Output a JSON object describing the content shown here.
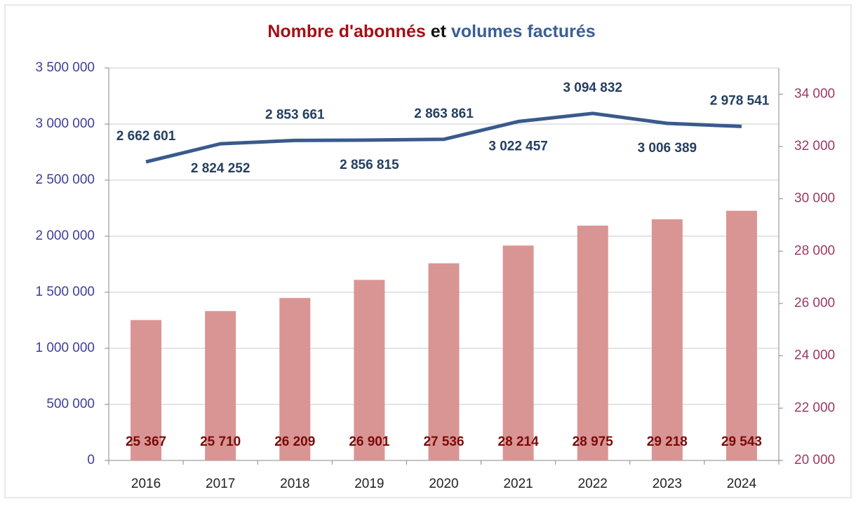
{
  "chart_data": {
    "type": "bar_line",
    "title": [
      "Nombre d'abonnés",
      "et",
      "volumes facturés"
    ],
    "title_colors": [
      "#a50f15",
      "#111111",
      "#3a5f96"
    ],
    "categories": [
      "2016",
      "2017",
      "2018",
      "2019",
      "2020",
      "2021",
      "2022",
      "2023",
      "2024"
    ],
    "series": [
      {
        "type": "bar",
        "axis": "y2",
        "color": "#d99594",
        "values": [
          25367,
          25710,
          26209,
          26901,
          27536,
          28214,
          28975,
          29218,
          29543
        ],
        "value_labels": [
          "25 367",
          "25 710",
          "26 209",
          "26 901",
          "27 536",
          "28 214",
          "28 975",
          "29 218",
          "29 543"
        ]
      },
      {
        "type": "line",
        "axis": "y",
        "color": "#3a5a8c",
        "values": [
          2662601,
          2824252,
          2853661,
          2856815,
          2863861,
          3022457,
          3094832,
          3006389,
          2978541
        ],
        "value_labels": [
          "2 662 601",
          "2 824 252",
          "2 853 661",
          "2 856 815",
          "2 863 861",
          "3 022 457",
          "3 094 832",
          "3 006 389",
          "2 978 541"
        ]
      }
    ],
    "ylim": [
      0,
      3500000
    ],
    "yticks": [
      0,
      {
        "value": 500000,
        "label": "500 000"
      },
      {
        "value": 1000000,
        "label": "1 000 000"
      },
      {
        "value": 1500000,
        "label": "1 500 000"
      },
      {
        "value": 2000000,
        "label": "2 000 000"
      },
      {
        "value": 2500000,
        "label": "2 500 000"
      },
      {
        "value": 3000000,
        "label": "3 000 000"
      },
      {
        "value": 3500000,
        "label": "3 500 000"
      }
    ],
    "y2lim": [
      20000,
      35000
    ],
    "y2ticks": [
      {
        "value": 20000,
        "label": "20 000"
      },
      {
        "value": 22000,
        "label": "22 000"
      },
      {
        "value": 24000,
        "label": "24 000"
      },
      {
        "value": 26000,
        "label": "26 000"
      },
      {
        "value": 28000,
        "label": "28 000"
      },
      {
        "value": 30000,
        "label": "30 000"
      },
      {
        "value": 32000,
        "label": "32 000"
      },
      {
        "value": 34000,
        "label": "34 000"
      }
    ],
    "grid": true
  }
}
